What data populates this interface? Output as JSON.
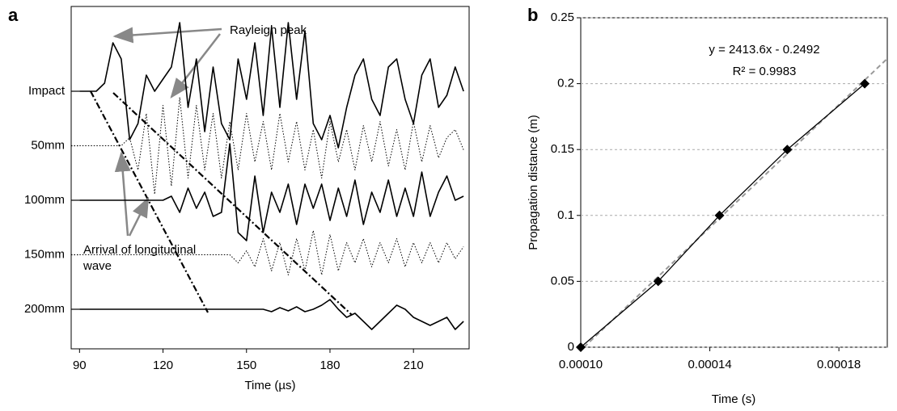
{
  "chart_data": [
    {
      "type": "line",
      "label": "a",
      "xlabel": "Time (µs)",
      "xlim": [
        87,
        230
      ],
      "xticks": [
        90,
        120,
        150,
        180,
        210
      ],
      "x": [
        90,
        93,
        96,
        99,
        102,
        105,
        108,
        111,
        114,
        117,
        120,
        123,
        126,
        129,
        132,
        135,
        138,
        141,
        144,
        147,
        150,
        153,
        156,
        159,
        162,
        165,
        168,
        171,
        174,
        177,
        180,
        183,
        186,
        189,
        192,
        195,
        198,
        201,
        204,
        207,
        210,
        213,
        216,
        219,
        222,
        225,
        228
      ],
      "series": [
        {
          "name": "Impact",
          "color": "#000000",
          "dash": "solid",
          "values": [
            0,
            0,
            0,
            10,
            60,
            40,
            -60,
            -40,
            20,
            0,
            15,
            30,
            85,
            -20,
            40,
            -50,
            30,
            -40,
            -60,
            40,
            -10,
            60,
            -30,
            80,
            -20,
            85,
            -10,
            75,
            -40,
            -60,
            -30,
            -70,
            -20,
            20,
            40,
            -10,
            -30,
            30,
            40,
            -10,
            -40,
            20,
            40,
            -20,
            -5,
            30,
            0
          ]
        },
        {
          "name": "50mm",
          "color": "#000000",
          "dash": "dotted",
          "values": [
            0,
            0,
            0,
            0,
            0,
            0,
            10,
            -30,
            40,
            -60,
            50,
            -50,
            60,
            -40,
            50,
            -30,
            40,
            -40,
            30,
            -30,
            40,
            -20,
            30,
            -30,
            40,
            -20,
            30,
            -30,
            20,
            -40,
            30,
            -20,
            20,
            -30,
            25,
            -20,
            30,
            -25,
            20,
            -30,
            30,
            -20,
            25,
            -15,
            10,
            20,
            -5
          ]
        },
        {
          "name": "100mm",
          "color": "#000000",
          "dash": "solid",
          "values": [
            0,
            0,
            0,
            0,
            0,
            0,
            0,
            0,
            0,
            0,
            0,
            5,
            -15,
            15,
            -10,
            10,
            -20,
            -15,
            70,
            -40,
            -50,
            30,
            -40,
            10,
            -15,
            20,
            -30,
            20,
            -10,
            20,
            -25,
            15,
            -20,
            25,
            -30,
            10,
            -15,
            25,
            -20,
            15,
            -20,
            35,
            -20,
            10,
            30,
            0,
            5
          ]
        },
        {
          "name": "150mm",
          "color": "#000000",
          "dash": "dotted",
          "values": [
            0,
            0,
            0,
            0,
            0,
            0,
            0,
            0,
            0,
            0,
            0,
            0,
            0,
            0,
            0,
            0,
            0,
            0,
            0,
            -10,
            5,
            -15,
            20,
            -20,
            15,
            -25,
            20,
            -20,
            30,
            -25,
            25,
            -20,
            15,
            -10,
            20,
            -15,
            15,
            -10,
            20,
            -15,
            15,
            -10,
            15,
            -10,
            15,
            -5,
            10
          ]
        },
        {
          "name": "200mm",
          "color": "#000000",
          "dash": "solid",
          "values": [
            0,
            0,
            0,
            0,
            0,
            0,
            0,
            0,
            0,
            0,
            0,
            0,
            0,
            0,
            0,
            0,
            0,
            0,
            0,
            0,
            0,
            0,
            0,
            -3,
            2,
            -2,
            3,
            -3,
            0,
            5,
            12,
            0,
            -10,
            -5,
            -15,
            -25,
            -15,
            -5,
            5,
            0,
            -10,
            -15,
            -20,
            -15,
            -10,
            -25,
            -15
          ]
        }
      ],
      "annotations": [
        "Rayleigh peak",
        "Arrival of longitudinal wave"
      ]
    },
    {
      "type": "scatter",
      "label": "b",
      "xlabel": "Time (s)",
      "ylabel": "Propagation distance (m)",
      "xlim": [
        0.0001,
        0.000195
      ],
      "xticks": [
        {
          "value": 0.0001,
          "label": "0.00010"
        },
        {
          "value": 0.00014,
          "label": "0.00014"
        },
        {
          "value": 0.00018,
          "label": "0.00018"
        }
      ],
      "ylim": [
        0,
        0.25
      ],
      "yticks": [
        0,
        0.05,
        0.1,
        0.15,
        0.2,
        0.25
      ],
      "grid": true,
      "x": [
        0.0001,
        0.000124,
        0.000143,
        0.000164,
        0.000188
      ],
      "values": [
        0,
        0.05,
        0.1,
        0.15,
        0.2
      ],
      "color": "#000000",
      "trendline": {
        "x": [
          0.000101,
          0.000195
        ],
        "values": [
          0,
          0.219
        ],
        "color": "#999999"
      },
      "equation": "y = 2413.6x - 0.2492",
      "r_squared": "R² = 0.9983"
    }
  ]
}
